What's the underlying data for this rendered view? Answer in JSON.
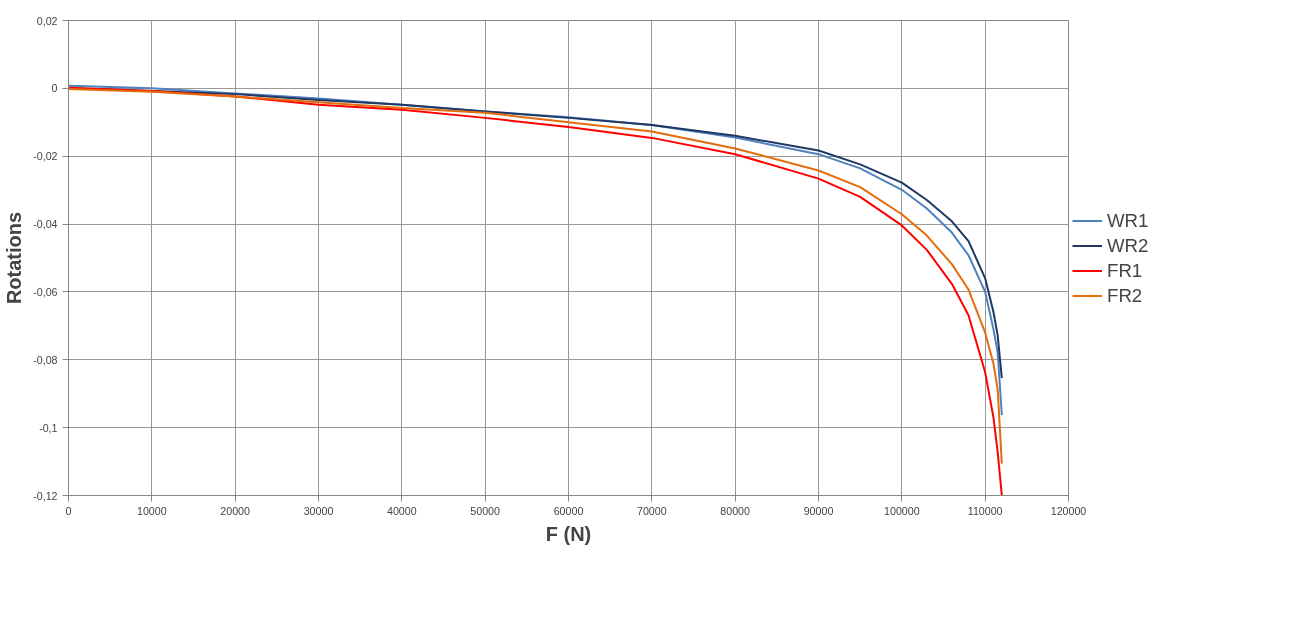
{
  "chart_data": {
    "type": "line",
    "xlabel": "F (N)",
    "ylabel": "Rotations",
    "xlim": [
      0,
      120000
    ],
    "xticks": [
      0,
      10000,
      20000,
      30000,
      40000,
      50000,
      60000,
      70000,
      80000,
      90000,
      100000,
      110000,
      120000
    ],
    "ylim": [
      -0.12,
      0.02
    ],
    "yticks": [
      {
        "value": -0.12,
        "label": "-0,12"
      },
      {
        "value": -0.1,
        "label": "-0,1"
      },
      {
        "value": -0.08,
        "label": "-0,08"
      },
      {
        "value": -0.06,
        "label": "-0,06"
      },
      {
        "value": -0.04,
        "label": "-0,04"
      },
      {
        "value": -0.02,
        "label": "-0,02"
      },
      {
        "value": 0,
        "label": "0"
      },
      {
        "value": 0.02,
        "label": "0,02"
      }
    ],
    "grid": true,
    "legend": "right",
    "marker": "none",
    "line_style": "solid",
    "x": [
      0,
      10000,
      20000,
      30000,
      40000,
      50000,
      60000,
      70000,
      80000,
      90000,
      95000,
      100000,
      103000,
      106000,
      108000,
      110000,
      111000,
      111500,
      112000
    ],
    "series": [
      {
        "name": "WR1",
        "color": "#4f81bd",
        "values": [
          0.0008,
          0,
          -0.0015,
          -0.003,
          -0.0048,
          -0.0068,
          -0.0085,
          -0.0108,
          -0.0145,
          -0.0194,
          -0.0236,
          -0.0299,
          -0.0354,
          -0.0425,
          -0.0492,
          -0.06,
          -0.0711,
          -0.0778,
          -0.0963
        ]
      },
      {
        "name": "WR2",
        "color": "#1f3864",
        "values": [
          0,
          -0.0008,
          -0.0017,
          -0.0034,
          -0.0048,
          -0.0068,
          -0.0087,
          -0.0108,
          -0.014,
          -0.0183,
          -0.0224,
          -0.0278,
          -0.0329,
          -0.0392,
          -0.045,
          -0.056,
          -0.066,
          -0.0728,
          -0.0854
        ]
      },
      {
        "name": "FR1",
        "color": "#ff0000",
        "values": [
          0.0002,
          -0.0008,
          -0.0024,
          -0.0048,
          -0.0063,
          -0.0087,
          -0.0114,
          -0.0146,
          -0.0194,
          -0.0266,
          -0.032,
          -0.0404,
          -0.0476,
          -0.0576,
          -0.0669,
          -0.0837,
          -0.0971,
          -0.1072,
          -0.12
        ]
      },
      {
        "name": "FR2",
        "color": "#e46c0a",
        "values": [
          -0.0002,
          -0.001,
          -0.0024,
          -0.0041,
          -0.0058,
          -0.0072,
          -0.01,
          -0.0127,
          -0.0177,
          -0.0242,
          -0.0291,
          -0.0371,
          -0.0434,
          -0.0518,
          -0.0593,
          -0.072,
          -0.0812,
          -0.0887,
          -0.1106
        ]
      }
    ]
  }
}
